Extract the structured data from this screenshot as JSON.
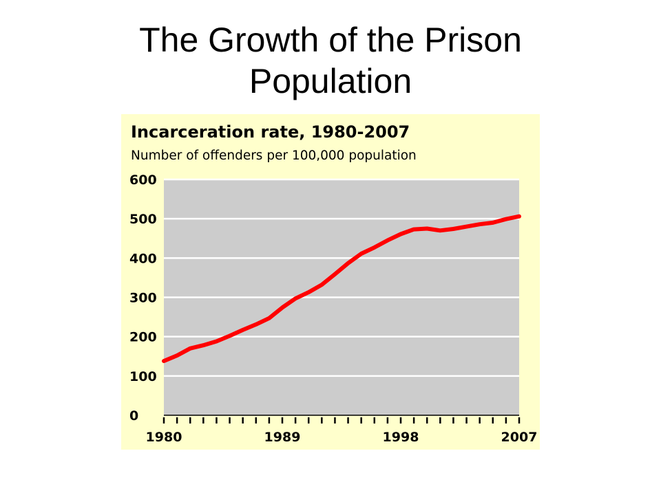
{
  "slide": {
    "title_line1": "The Growth of the Prison",
    "title_line2": "Population"
  },
  "colors": {
    "panel_background": "#ffffcc",
    "plot_background": "#cccccc",
    "gridline": "#ffffff",
    "series_line": "#ff0000",
    "text": "#000000"
  },
  "chart_data": {
    "type": "line",
    "title": "Incarceration rate, 1980-2007",
    "subtitle": "Number of offenders per 100,000 population",
    "xlabel": "",
    "ylabel": "",
    "xlim": [
      1980,
      2007
    ],
    "ylim": [
      0,
      600
    ],
    "yticks": [
      0,
      100,
      200,
      300,
      400,
      500,
      600
    ],
    "xtick_labels": [
      "1980",
      "1989",
      "1998",
      "2007"
    ],
    "xtick_label_years": [
      1980,
      1989,
      1998,
      2007
    ],
    "minor_tick_years": [
      1980,
      1981,
      1982,
      1983,
      1984,
      1985,
      1986,
      1987,
      1988,
      1989,
      1990,
      1991,
      1992,
      1993,
      1994,
      1995,
      1996,
      1997,
      1998,
      1999,
      2000,
      2001,
      2002,
      2003,
      2004,
      2005,
      2006,
      2007
    ],
    "grid": true,
    "legend": "none",
    "series": [
      {
        "x": [
          1980,
          1981,
          1982,
          1983,
          1984,
          1985,
          1986,
          1987,
          1988,
          1989,
          1990,
          1991,
          1992,
          1993,
          1994,
          1995,
          1996,
          1997,
          1998,
          1999,
          2000,
          2001,
          2002,
          2003,
          2004,
          2005,
          2006,
          2007
        ],
        "y": [
          138,
          152,
          170,
          178,
          188,
          202,
          217,
          231,
          247,
          274,
          297,
          313,
          332,
          359,
          387,
          411,
          427,
          445,
          461,
          473,
          475,
          470,
          474,
          480,
          486,
          490,
          499,
          506
        ]
      }
    ]
  }
}
